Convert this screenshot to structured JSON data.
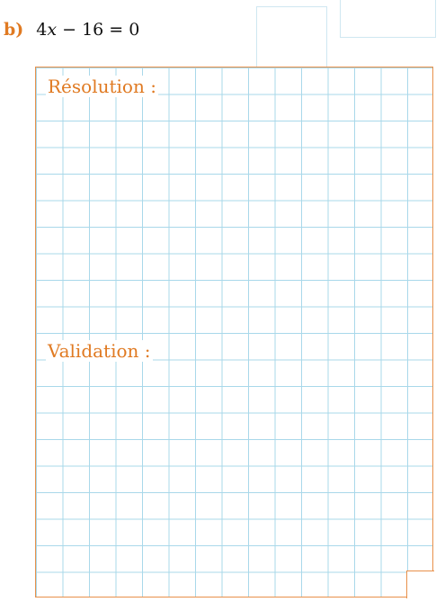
{
  "question": {
    "label": "b)",
    "coef": "4",
    "variable": "x",
    "rest": " − 16 = 0"
  },
  "sections": {
    "resolution": "Résolution :",
    "validation": "Validation :"
  },
  "colors": {
    "accent": "#e07a22",
    "grid": "#a9d8ea",
    "border": "#e8904a"
  }
}
